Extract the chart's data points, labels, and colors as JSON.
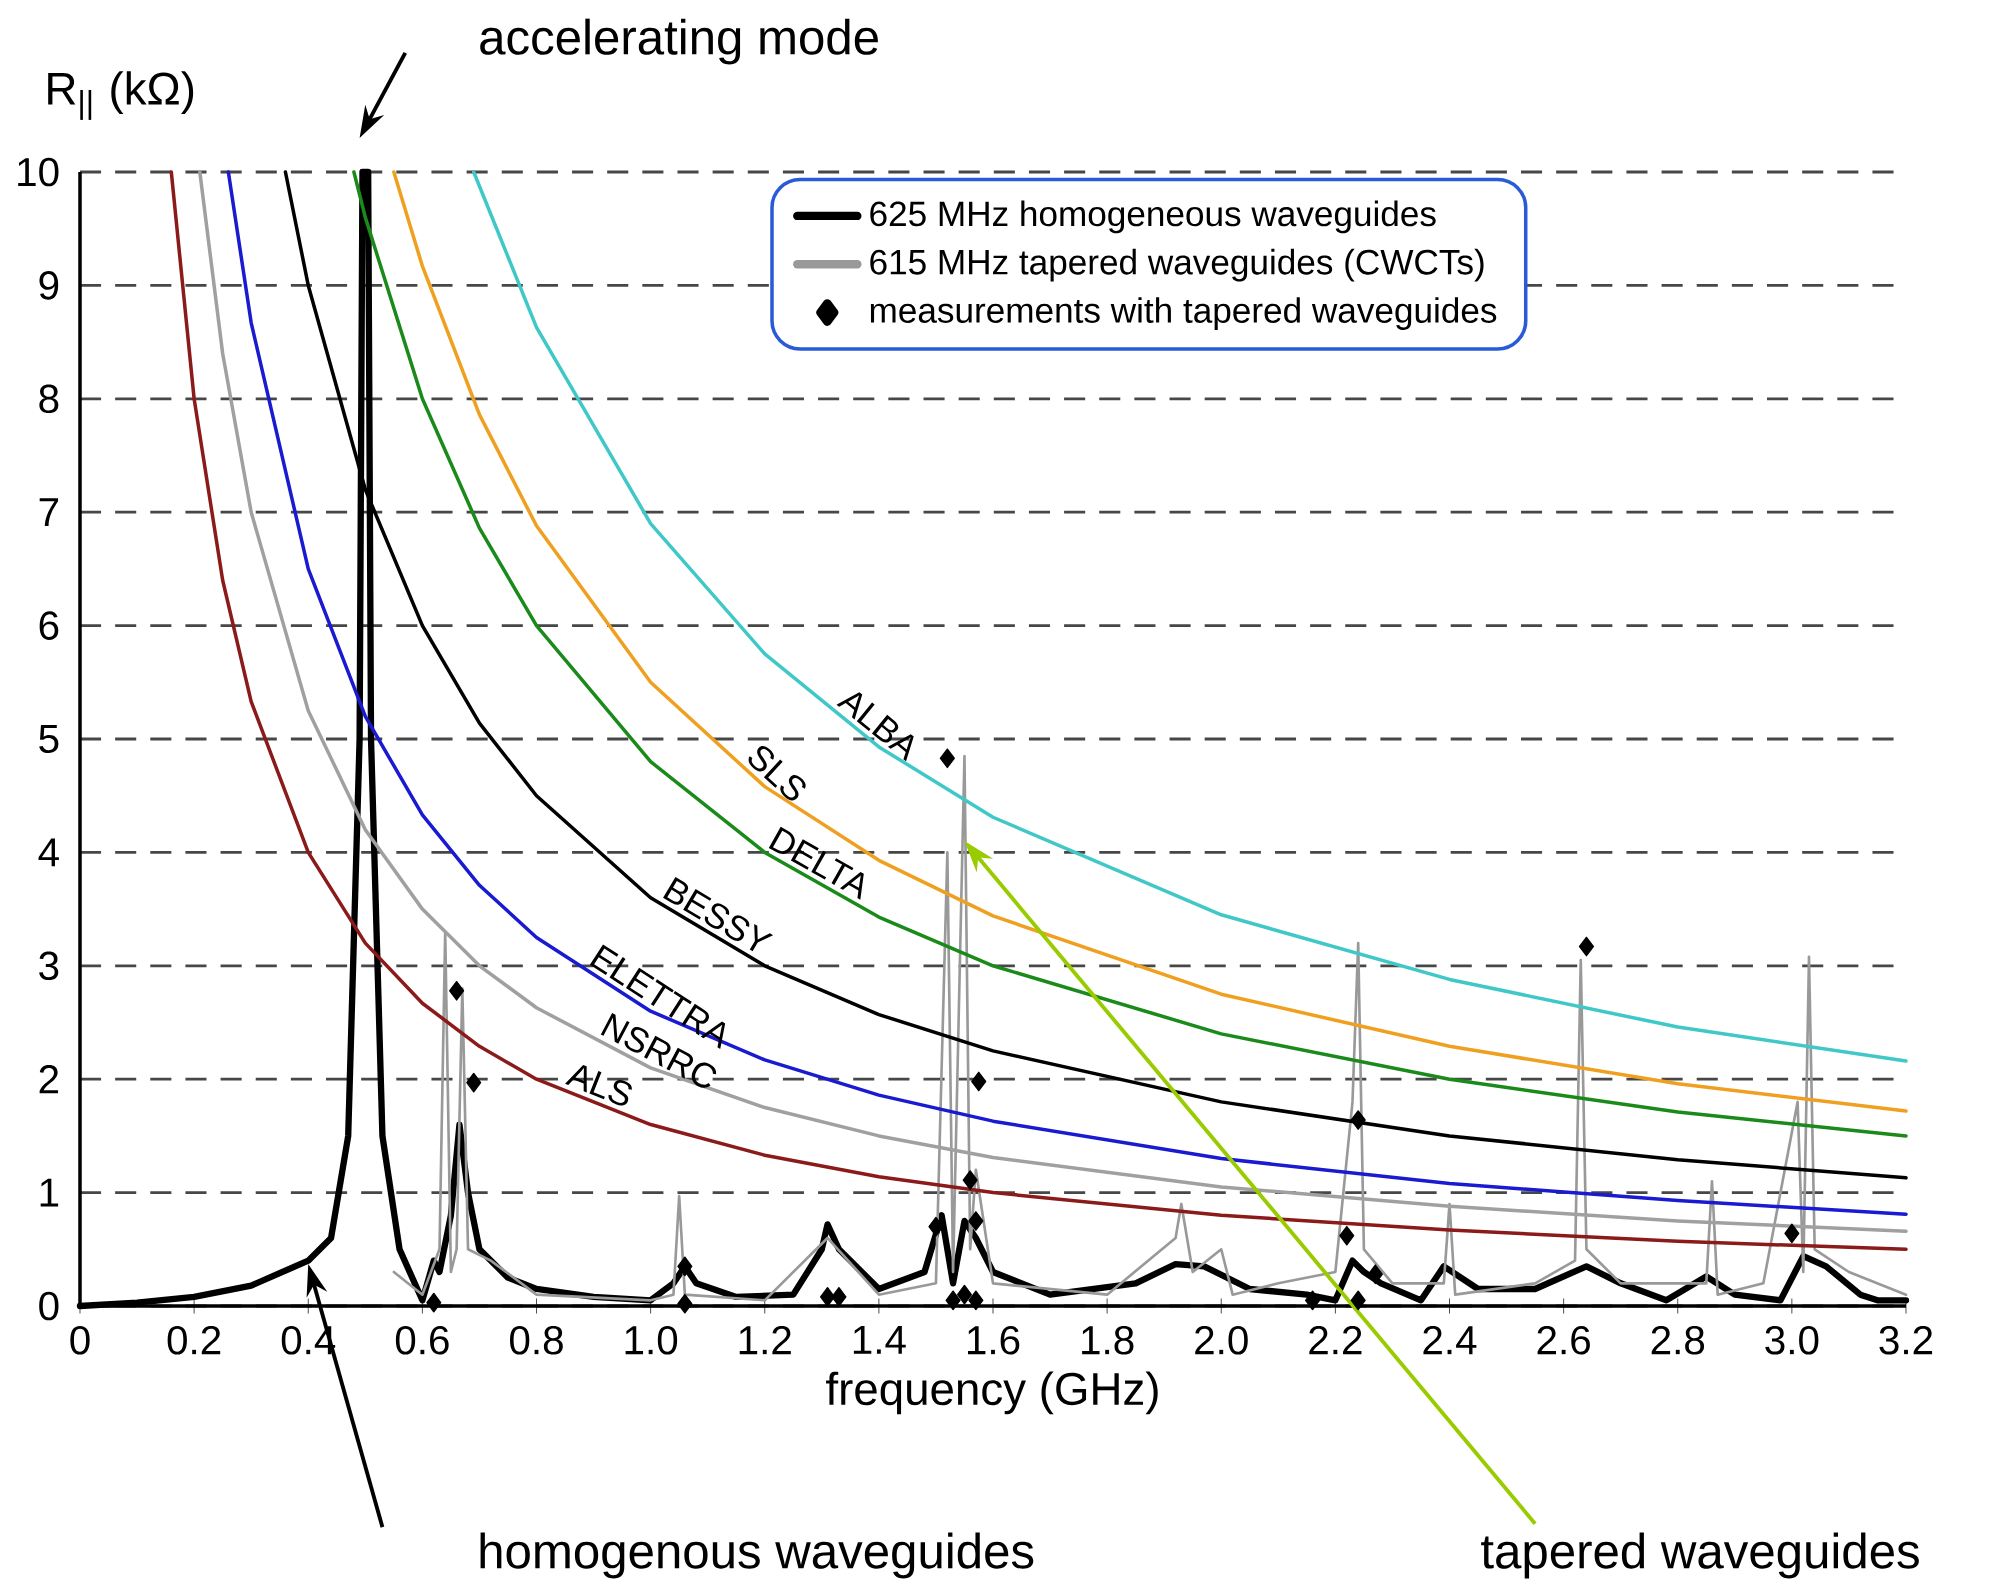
{
  "chart_data": {
    "type": "line",
    "xlabel": "frequency (GHz)",
    "ylabel": "R$_{||}$ (kΩ)",
    "xlim": [
      0,
      3.2
    ],
    "ylim": [
      0,
      10
    ],
    "xticks": [
      0,
      0.2,
      0.4,
      0.6,
      0.8,
      {
        "value": 1,
        "label": "1.0"
      },
      1.2,
      1.4,
      1.6,
      1.8,
      {
        "value": 2,
        "label": "2.0"
      },
      2.2,
      2.4,
      2.6,
      2.8,
      {
        "value": 3,
        "label": "3.0"
      },
      3.2
    ],
    "yticks": [
      0,
      1,
      2,
      3,
      4,
      5,
      6,
      7,
      8,
      9,
      10
    ],
    "grid": "y",
    "legend": "top right",
    "series": [
      {
        "name": "625 MHz homogeneous waveguides",
        "color": "#000000",
        "x": [
          0,
          0.1,
          0.2,
          0.3,
          0.4,
          0.44,
          0.47,
          0.49,
          0.495,
          0.505,
          0.51,
          0.53,
          0.56,
          0.6,
          0.62,
          0.63,
          0.65,
          0.665,
          0.68,
          0.7,
          0.75,
          0.8,
          0.9,
          1.0,
          1.04,
          1.06,
          1.08,
          1.15,
          1.25,
          1.3,
          1.31,
          1.33,
          1.4,
          1.48,
          1.51,
          1.53,
          1.55,
          1.57,
          1.6,
          1.7,
          1.85,
          1.92,
          1.97,
          2.05,
          2.15,
          2.2,
          2.23,
          2.25,
          2.28,
          2.35,
          2.39,
          2.45,
          2.55,
          2.64,
          2.7,
          2.78,
          2.85,
          2.9,
          2.98,
          3.02,
          3.06,
          3.12,
          3.15,
          3.2
        ],
        "values": [
          0,
          0.03,
          0.08,
          0.18,
          0.4,
          0.6,
          1.5,
          5,
          10,
          10,
          5,
          1.5,
          0.5,
          0.05,
          0.4,
          0.3,
          0.8,
          1.6,
          1.0,
          0.5,
          0.25,
          0.15,
          0.08,
          0.05,
          0.2,
          0.35,
          0.2,
          0.08,
          0.1,
          0.5,
          0.72,
          0.5,
          0.15,
          0.3,
          0.8,
          0.2,
          0.75,
          0.6,
          0.3,
          0.1,
          0.2,
          0.37,
          0.35,
          0.15,
          0.1,
          0.05,
          0.4,
          0.3,
          0.2,
          0.05,
          0.35,
          0.15,
          0.15,
          0.35,
          0.2,
          0.05,
          0.26,
          0.1,
          0.05,
          0.44,
          0.35,
          0.1,
          0.05,
          0.05
        ]
      },
      {
        "name": "615 MHz tapered waveguides (CWCTs)",
        "color": "#999999",
        "x": [
          0.55,
          0.6,
          0.63,
          0.64,
          0.65,
          0.66,
          0.67,
          0.68,
          0.72,
          0.8,
          1.0,
          1.04,
          1.05,
          1.06,
          1.2,
          1.31,
          1.4,
          1.5,
          1.52,
          1.53,
          1.55,
          1.56,
          1.57,
          1.6,
          1.8,
          1.92,
          1.93,
          1.95,
          2.0,
          2.02,
          2.1,
          2.2,
          2.23,
          2.24,
          2.25,
          2.3,
          2.39,
          2.4,
          2.41,
          2.55,
          2.62,
          2.63,
          2.64,
          2.66,
          2.7,
          2.85,
          2.86,
          2.87,
          2.95,
          3.01,
          3.02,
          3.03,
          3.04,
          3.1,
          3.2
        ],
        "values": [
          0.3,
          0.1,
          0.5,
          3.3,
          0.3,
          0.5,
          2.8,
          0.5,
          0.4,
          0.1,
          0.05,
          0.1,
          0.97,
          0.1,
          0.05,
          0.6,
          0.1,
          0.2,
          4.0,
          0.3,
          4.85,
          0.5,
          1.2,
          0.2,
          0.1,
          0.6,
          0.9,
          0.3,
          0.5,
          0.1,
          0.2,
          0.3,
          1.8,
          3.2,
          0.5,
          0.2,
          0.2,
          0.9,
          0.1,
          0.2,
          0.4,
          3.05,
          0.5,
          0.4,
          0.2,
          0.2,
          1.1,
          0.1,
          0.2,
          1.8,
          0.3,
          3.08,
          0.5,
          0.3,
          0.1
        ]
      },
      {
        "name": "measurements with tapered waveguides",
        "type": "scatter",
        "marker": "diamond",
        "color": "#000000",
        "x": [
          0.62,
          0.66,
          0.69,
          1.06,
          1.06,
          1.31,
          1.33,
          1.5,
          1.52,
          1.53,
          1.55,
          1.56,
          1.57,
          1.575,
          1.57,
          2.16,
          2.22,
          2.24,
          2.24,
          2.27,
          2.64,
          3.0
        ],
        "values": [
          0.03,
          2.78,
          1.97,
          0.35,
          0.02,
          0.08,
          0.08,
          0.7,
          4.83,
          0.05,
          0.1,
          1.11,
          0.75,
          1.98,
          0.05,
          0.05,
          0.62,
          1.64,
          0.05,
          0.28,
          3.17,
          0.64
        ]
      },
      {
        "name": "ALS",
        "color": "#8b1a1a",
        "x": [
          0.16,
          0.2,
          0.25,
          0.3,
          0.4,
          0.5,
          0.6,
          0.7,
          0.8,
          1.0,
          1.2,
          1.4,
          1.6,
          2.0,
          2.4,
          2.8,
          3.2
        ],
        "values": [
          10,
          8,
          6.4,
          5.33,
          4,
          3.2,
          2.67,
          2.29,
          2,
          1.6,
          1.33,
          1.14,
          1,
          0.8,
          0.67,
          0.57,
          0.5
        ]
      },
      {
        "name": "NSRRC",
        "color": "#a0a0a0",
        "x": [
          0.21,
          0.25,
          0.3,
          0.4,
          0.5,
          0.6,
          0.7,
          0.8,
          1.0,
          1.2,
          1.4,
          1.6,
          2.0,
          2.4,
          2.8,
          3.2
        ],
        "values": [
          10,
          8.4,
          7,
          5.25,
          4.2,
          3.5,
          3,
          2.63,
          2.1,
          1.75,
          1.5,
          1.31,
          1.05,
          0.88,
          0.75,
          0.66
        ]
      },
      {
        "name": "ELETTRA",
        "color": "#1a1ad0",
        "x": [
          0.26,
          0.3,
          0.4,
          0.5,
          0.6,
          0.7,
          0.8,
          1.0,
          1.2,
          1.4,
          1.6,
          2.0,
          2.4,
          2.8,
          3.2
        ],
        "values": [
          10,
          8.67,
          6.5,
          5.2,
          4.33,
          3.71,
          3.25,
          2.6,
          2.17,
          1.86,
          1.63,
          1.3,
          1.08,
          0.93,
          0.81
        ]
      },
      {
        "name": "BESSY",
        "color": "#000000",
        "x": [
          0.36,
          0.4,
          0.5,
          0.6,
          0.7,
          0.8,
          1.0,
          1.2,
          1.4,
          1.6,
          2.0,
          2.4,
          2.8,
          3.2
        ],
        "values": [
          10,
          9,
          7.2,
          6,
          5.14,
          4.5,
          3.6,
          3,
          2.57,
          2.25,
          1.8,
          1.5,
          1.29,
          1.13
        ]
      },
      {
        "name": "DELTA",
        "color": "#1a8a1a",
        "x": [
          0.48,
          0.5,
          0.6,
          0.7,
          0.8,
          1.0,
          1.2,
          1.4,
          1.6,
          2.0,
          2.4,
          2.8,
          3.2
        ],
        "values": [
          10,
          9.6,
          8,
          6.86,
          6,
          4.8,
          4,
          3.43,
          3,
          2.4,
          2,
          1.71,
          1.5
        ]
      },
      {
        "name": "SLS",
        "color": "#f0a020",
        "x": [
          0.55,
          0.6,
          0.7,
          0.8,
          1.0,
          1.2,
          1.4,
          1.6,
          2.0,
          2.4,
          2.8,
          3.2
        ],
        "values": [
          10,
          9.17,
          7.86,
          6.88,
          5.5,
          4.58,
          3.93,
          3.44,
          2.75,
          2.29,
          1.96,
          1.72
        ]
      },
      {
        "name": "ALBA",
        "color": "#40c8c8",
        "x": [
          0.69,
          0.8,
          1.0,
          1.2,
          1.4,
          1.6,
          2.0,
          2.4,
          2.8,
          3.2
        ],
        "values": [
          10,
          8.63,
          6.9,
          5.75,
          4.93,
          4.31,
          3.45,
          2.88,
          2.46,
          2.16
        ]
      }
    ],
    "annotations": [
      "accelerating mode",
      "homogenous waveguides",
      "tapered waveguides"
    ]
  }
}
